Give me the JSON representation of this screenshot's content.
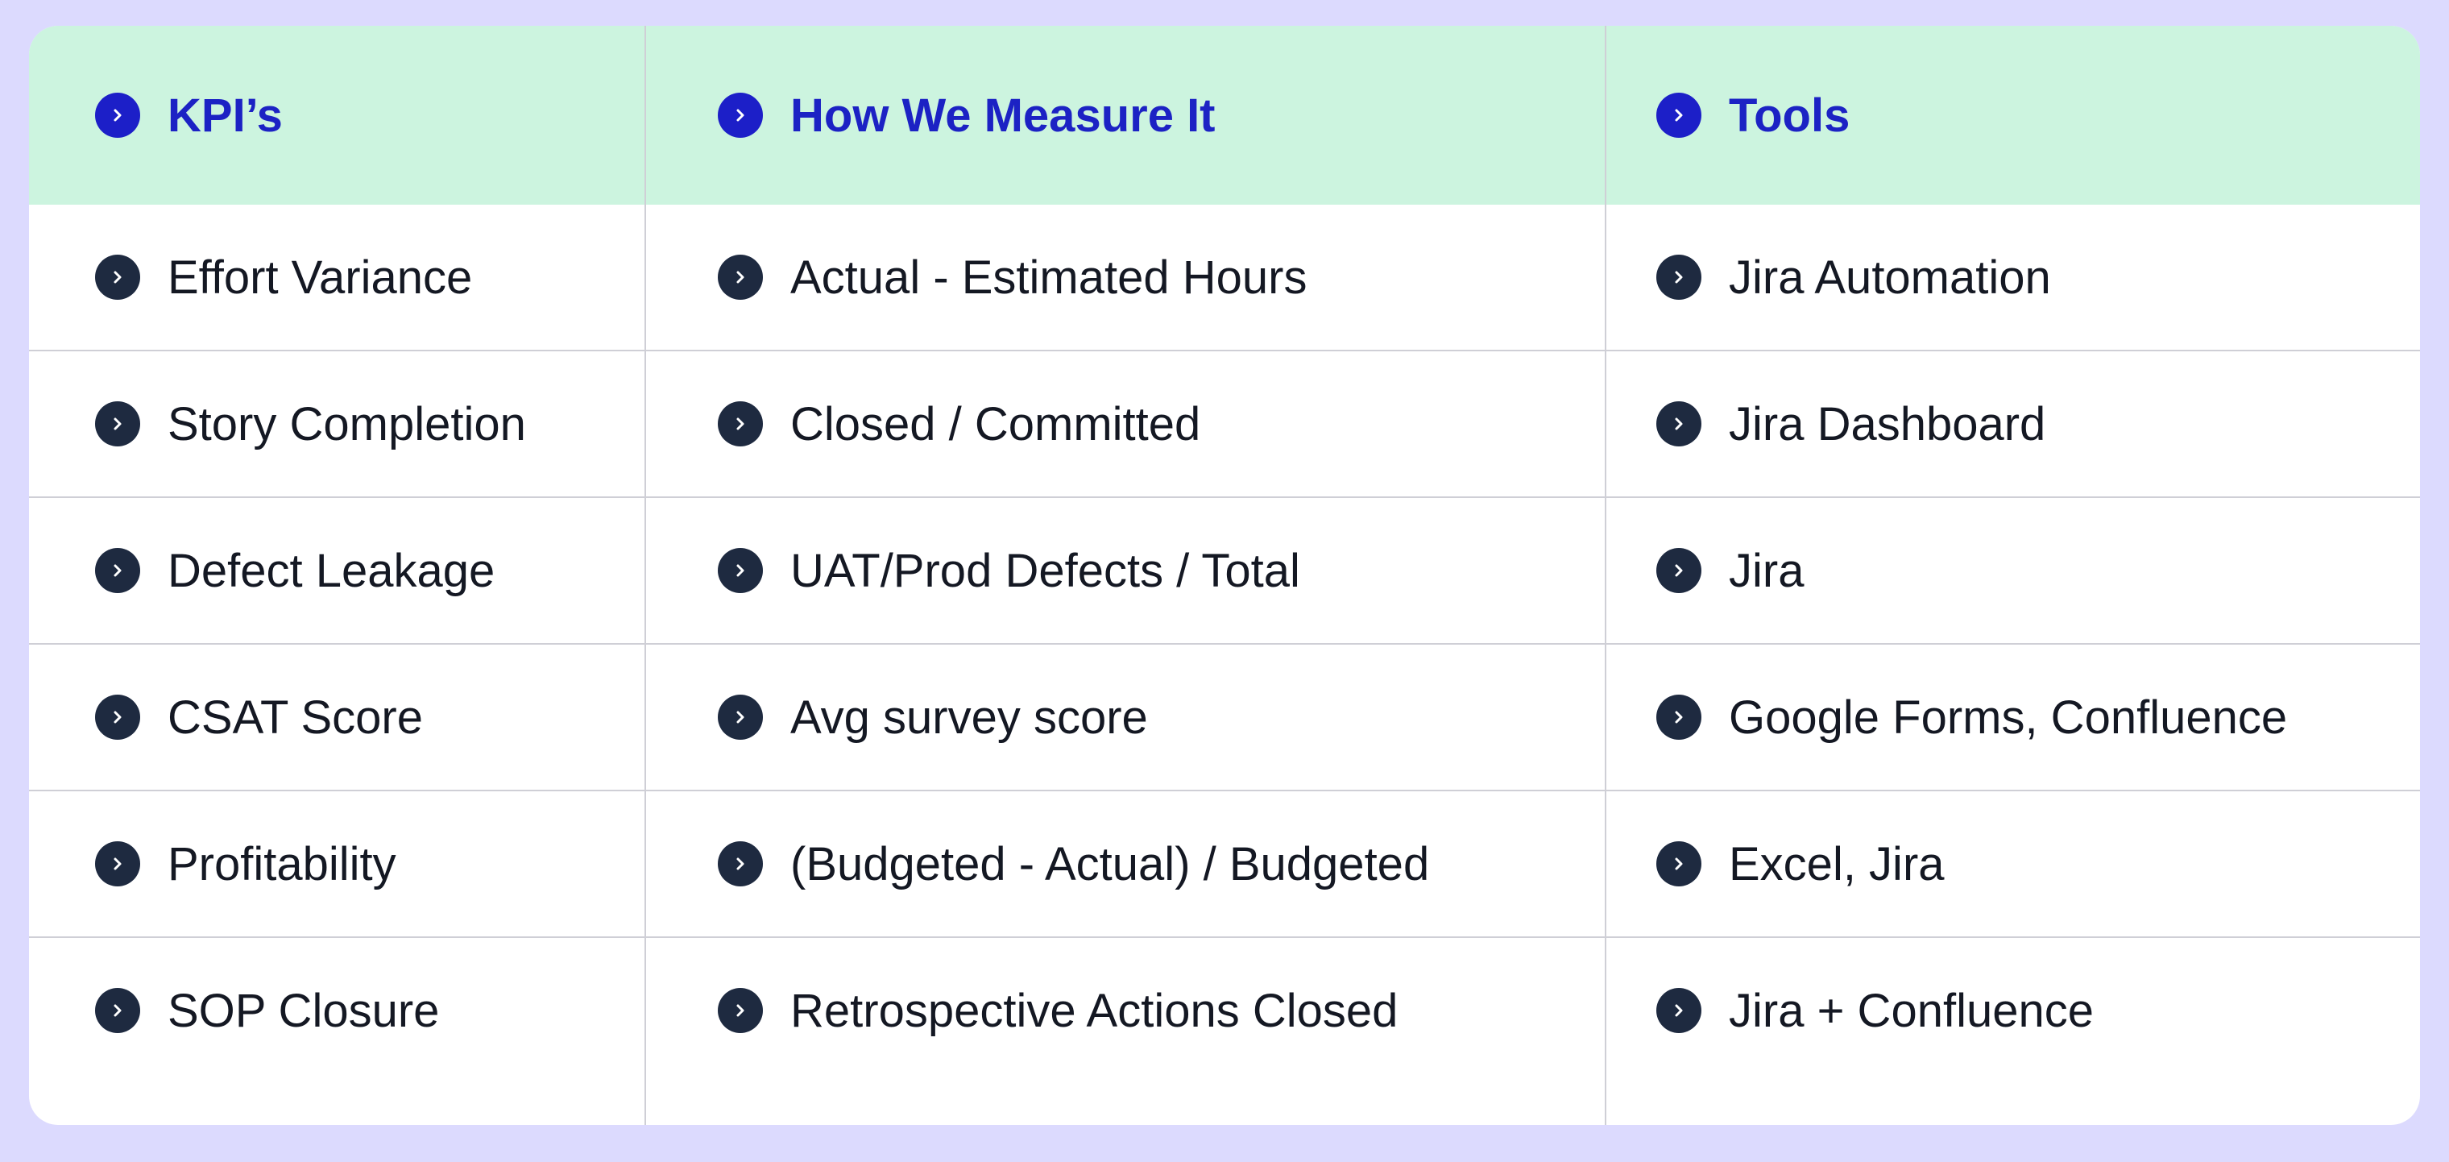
{
  "colors": {
    "page_background": "#dcdafe",
    "card_background": "#ffffff",
    "header_background": "#ccf4df",
    "header_text": "#1c22c4",
    "header_icon": "#1c1fc8",
    "body_icon": "#1e2a40",
    "body_text": "#141823"
  },
  "table": {
    "headers": [
      "KPI’s",
      "How We Measure It",
      "Tools"
    ],
    "rows": [
      [
        "Effort Variance",
        "Actual - Estimated Hours",
        "Jira Automation"
      ],
      [
        "Story Completion",
        "Closed / Committed",
        "Jira Dashboard"
      ],
      [
        "Defect Leakage",
        "UAT/Prod Defects / Total",
        "Jira"
      ],
      [
        "CSAT Score",
        "Avg survey score",
        "Google Forms, Confluence"
      ],
      [
        "Profitability",
        "(Budgeted - Actual) / Budgeted",
        "Excel, Jira"
      ],
      [
        "SOP Closure",
        "Retrospective Actions Closed",
        "Jira + Confluence"
      ]
    ],
    "icon": "chevron-right-circle-icon"
  }
}
